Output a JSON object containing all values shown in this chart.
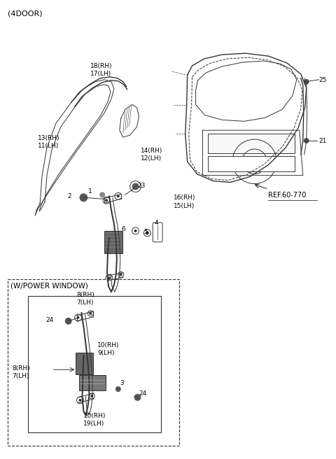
{
  "title": "(4DOOR)",
  "background_color": "#ffffff",
  "line_color": "#333333",
  "text_color": "#000000",
  "ref_text": "REF.60-770",
  "power_window_label": "(W/POWER WINDOW)"
}
